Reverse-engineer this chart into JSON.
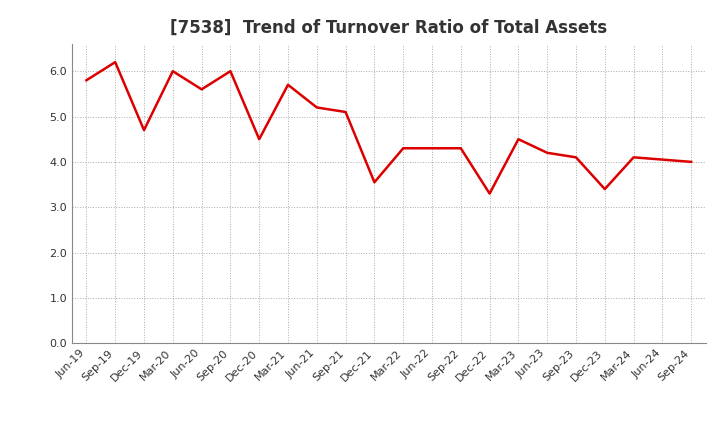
{
  "title": "[7538]  Trend of Turnover Ratio of Total Assets",
  "labels": [
    "Jun-19",
    "Sep-19",
    "Dec-19",
    "Mar-20",
    "Jun-20",
    "Sep-20",
    "Dec-20",
    "Mar-21",
    "Jun-21",
    "Sep-21",
    "Dec-21",
    "Mar-22",
    "Jun-22",
    "Sep-22",
    "Dec-22",
    "Mar-23",
    "Jun-23",
    "Sep-23",
    "Dec-23",
    "Mar-24",
    "Jun-24",
    "Sep-24"
  ],
  "values": [
    5.8,
    6.2,
    4.7,
    6.0,
    5.6,
    6.0,
    4.5,
    5.7,
    5.2,
    5.1,
    3.55,
    4.3,
    4.3,
    4.3,
    3.3,
    4.5,
    4.2,
    4.1,
    3.4,
    4.1,
    4.05,
    4.0
  ],
  "line_color": "#dd0000",
  "line_width": 1.8,
  "ylim": [
    0.0,
    6.6
  ],
  "yticks": [
    0.0,
    1.0,
    2.0,
    3.0,
    4.0,
    5.0,
    6.0
  ],
  "background_color": "#ffffff",
  "plot_area_color": "#ffffff",
  "grid_color": "#aaaaaa",
  "title_fontsize": 12,
  "tick_fontsize": 8,
  "title_color": "#333333"
}
